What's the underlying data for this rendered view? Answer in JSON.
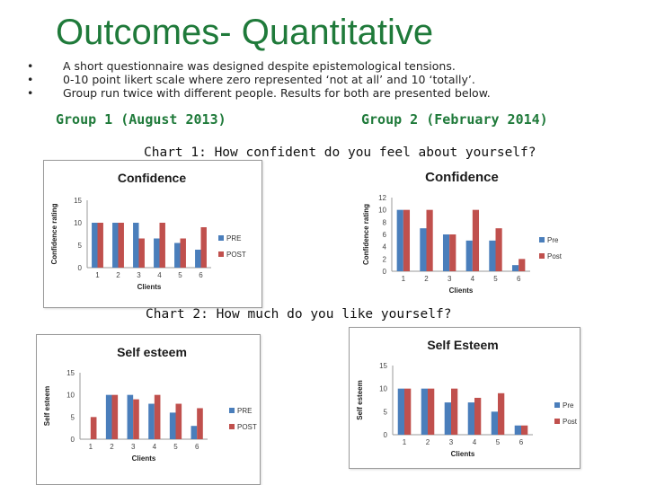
{
  "slide": {
    "title": "Outcomes- Quantitative",
    "bullets": [
      "A short questionnaire was designed despite epistemological tensions.",
      "0-10 point likert scale where zero represented ‘not at all’ and 10 ‘totally’.",
      "Group run twice with different people. Results for both are presented below."
    ],
    "bullet_marker": "•",
    "group1_label": "Group 1 (August 2013)",
    "group2_label": "Group 2 (February 2014)",
    "chart1_heading": "Chart 1: How confident do you feel about yourself?",
    "chart2_heading": "Chart 2: How much do you like yourself?"
  },
  "colors": {
    "pre": "#4a7ebb",
    "post": "#c0504d",
    "green": "#1f7a3a",
    "grid": "#d9d9d9"
  },
  "chart_data": [
    {
      "type": "bar",
      "title": "Confidence",
      "xlabel": "Clients",
      "ylabel": "Confidence rating",
      "categories": [
        "1",
        "2",
        "3",
        "4",
        "5",
        "6"
      ],
      "ylim": [
        0,
        15
      ],
      "yticks": [
        0,
        5,
        10,
        15
      ],
      "series": [
        {
          "name": "PRE",
          "values": [
            10,
            10,
            10,
            6.5,
            5.5,
            4
          ]
        },
        {
          "name": "POST",
          "values": [
            10,
            10,
            6.5,
            10,
            6.5,
            9
          ]
        }
      ],
      "legend": "right",
      "grid": false
    },
    {
      "type": "bar",
      "title": "Confidence",
      "xlabel": "Clients",
      "ylabel": "Confidence rating",
      "categories": [
        "1",
        "2",
        "3",
        "4",
        "5",
        "6"
      ],
      "ylim": [
        0,
        12
      ],
      "yticks": [
        0,
        2,
        4,
        6,
        8,
        10,
        12
      ],
      "series": [
        {
          "name": "Pre",
          "values": [
            10,
            7,
            6,
            5,
            5,
            1
          ]
        },
        {
          "name": "Post",
          "values": [
            10,
            10,
            6,
            10,
            7,
            2
          ]
        }
      ],
      "legend": "right",
      "grid": false
    },
    {
      "type": "bar",
      "title": "Self esteem",
      "xlabel": "Clients",
      "ylabel": "Self esteem",
      "categories": [
        "1",
        "2",
        "3",
        "4",
        "5",
        "6"
      ],
      "ylim": [
        0,
        15
      ],
      "yticks": [
        0,
        5,
        10,
        15
      ],
      "series": [
        {
          "name": "PRE",
          "values": [
            0,
            10,
            10,
            8,
            6,
            3
          ]
        },
        {
          "name": "POST",
          "values": [
            5,
            10,
            9,
            10,
            8,
            7
          ]
        }
      ],
      "legend": "right",
      "grid": false
    },
    {
      "type": "bar",
      "title": "Self Esteem",
      "xlabel": "Clients",
      "ylabel": "Self esteem",
      "categories": [
        "1",
        "2",
        "3",
        "4",
        "5",
        "6"
      ],
      "ylim": [
        0,
        15
      ],
      "yticks": [
        0,
        5,
        10,
        15
      ],
      "series": [
        {
          "name": "Pre",
          "values": [
            10,
            10,
            7,
            7,
            5,
            2
          ]
        },
        {
          "name": "Post",
          "values": [
            10,
            10,
            10,
            8,
            9,
            2
          ]
        }
      ],
      "legend": "right",
      "grid": false
    }
  ]
}
